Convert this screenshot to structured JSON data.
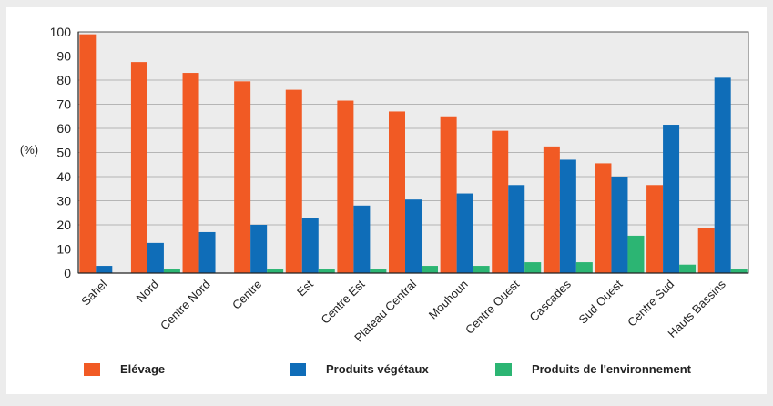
{
  "chart_data": {
    "type": "bar",
    "ylabel": "(%)",
    "ylim": [
      0,
      100
    ],
    "yticks": [
      0,
      10,
      20,
      30,
      40,
      50,
      60,
      70,
      80,
      90,
      100
    ],
    "grid": true,
    "legend_position": "bottom",
    "categories": [
      "Sahel",
      "Nord",
      "Centre Nord",
      "Centre",
      "Est",
      "Centre Est",
      "Plateau Central",
      "Mouhoun",
      "Centre Ouest",
      "Cascades",
      "Sud Ouest",
      "Centre Sud",
      "Hauts Bassins"
    ],
    "series": [
      {
        "name": "Elévage",
        "color": "#f15a24",
        "values": [
          99,
          87.5,
          83,
          79.5,
          76,
          71.5,
          67,
          65,
          59,
          52.5,
          45.5,
          36.5,
          18.5
        ]
      },
      {
        "name": "Produits végétaux",
        "color": "#0f6db8",
        "values": [
          3,
          12.5,
          17,
          20,
          23,
          28,
          30.5,
          33,
          36.5,
          47,
          40,
          61.5,
          81
        ]
      },
      {
        "name": "Produits de l'environnement",
        "color": "#2cb573",
        "values": [
          0,
          1.5,
          0,
          1.5,
          1.5,
          1.5,
          3,
          3,
          4.5,
          4.5,
          15.5,
          3.5,
          1.5
        ]
      }
    ]
  }
}
